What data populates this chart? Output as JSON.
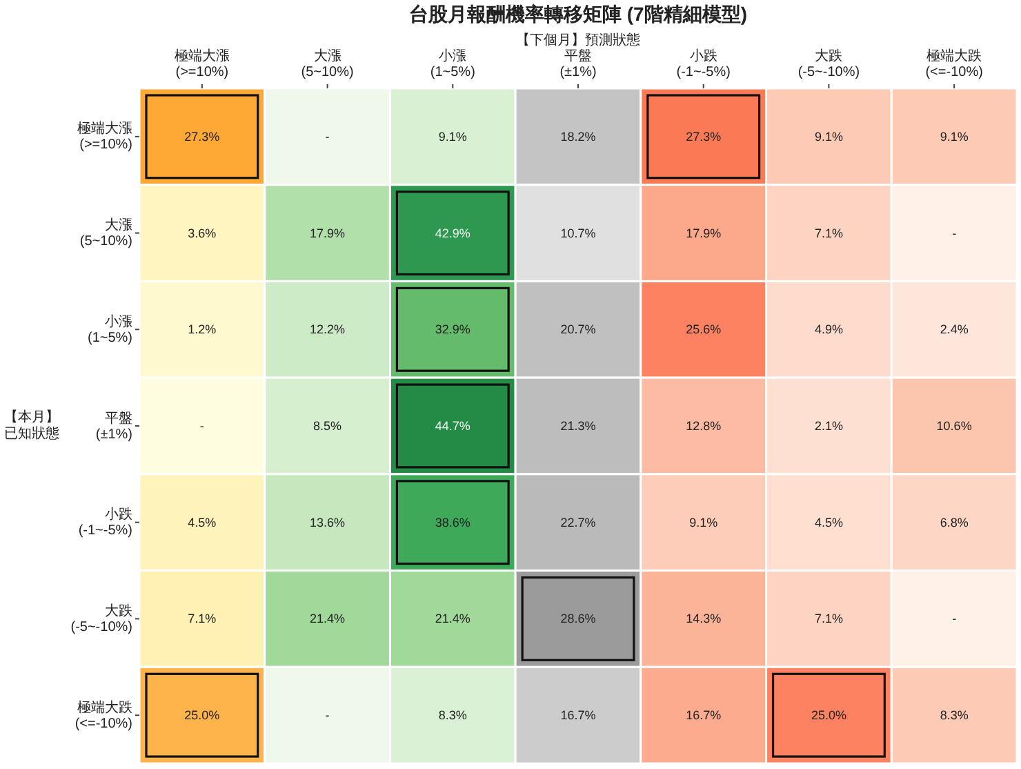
{
  "chart_data": {
    "type": "heatmap",
    "title": "台股月報酬機率轉移矩陣 (7階精細模型)",
    "xlabel": "【下個月】預測狀態",
    "ylabel": "【本月】已知狀態",
    "categories": [
      "極端大漲\n(>=10%)",
      "大漲\n(5~10%)",
      "小漲\n(1~5%)",
      "平盤\n(±1%)",
      "小跌\n(-1~-5%)",
      "大跌\n(-5~-10%)",
      "極端大跌\n(<=-10%)"
    ],
    "y_categories": [
      "極端大漲\n(>=10%)",
      "大漲\n(5~10%)",
      "小漲\n(1~5%)",
      "平盤\n(±1%)",
      "小跌\n(-1~-5%)",
      "大跌\n(-5~-10%)",
      "極端大跌\n(<=-10%)"
    ],
    "cells": [
      [
        27.3,
        null,
        9.1,
        18.2,
        27.3,
        9.1,
        9.1
      ],
      [
        3.6,
        17.9,
        42.9,
        10.7,
        17.9,
        7.1,
        null
      ],
      [
        1.2,
        12.2,
        32.9,
        20.7,
        25.6,
        4.9,
        2.4
      ],
      [
        null,
        8.5,
        44.7,
        21.3,
        12.8,
        2.1,
        10.6
      ],
      [
        4.5,
        13.6,
        38.6,
        22.7,
        9.1,
        4.5,
        6.8
      ],
      [
        7.1,
        21.4,
        21.4,
        28.6,
        14.3,
        7.1,
        null
      ],
      [
        25.0,
        null,
        8.3,
        16.7,
        16.7,
        25.0,
        8.3
      ]
    ],
    "cell_labels": [
      [
        "27.3%",
        "-",
        "9.1%",
        "18.2%",
        "27.3%",
        "9.1%",
        "9.1%"
      ],
      [
        "3.6%",
        "17.9%",
        "42.9%",
        "10.7%",
        "17.9%",
        "7.1%",
        "-"
      ],
      [
        "1.2%",
        "12.2%",
        "32.9%",
        "20.7%",
        "25.6%",
        "4.9%",
        "2.4%"
      ],
      [
        "-",
        "8.5%",
        "44.7%",
        "21.3%",
        "12.8%",
        "2.1%",
        "10.6%"
      ],
      [
        "4.5%",
        "13.6%",
        "38.6%",
        "22.7%",
        "9.1%",
        "4.5%",
        "6.8%"
      ],
      [
        "7.1%",
        "21.4%",
        "21.4%",
        "28.6%",
        "14.3%",
        "7.1%",
        "-"
      ],
      [
        "25.0%",
        "-",
        "8.3%",
        "16.7%",
        "16.7%",
        "25.0%",
        "8.3%"
      ]
    ],
    "colors": [
      [
        "#fea935",
        "#f0f8ec",
        "#d9f0d3",
        "#c4c4c4",
        "#fb7a56",
        "#fdcab5",
        "#fdcab5"
      ],
      [
        "#fff5c1",
        "#b1e0ab",
        "#2e9850",
        "#e0e0e0",
        "#fca88a",
        "#fdd4c2",
        "#fff0e8"
      ],
      [
        "#fff9cf",
        "#ccebc6",
        "#64bb6c",
        "#c0c0c0",
        "#fc8262",
        "#fedbcc",
        "#fee6da"
      ],
      [
        "#fffde0",
        "#d5efcf",
        "#238b45",
        "#bdbdbd",
        "#fcbba2",
        "#fee0d3",
        "#fcc5ad"
      ],
      [
        "#fff3bc",
        "#c5e8bf",
        "#3fa95a",
        "#bababa",
        "#fdcdb9",
        "#fedfd0",
        "#fed6c6"
      ],
      [
        "#fff0b3",
        "#a1d99b",
        "#a1d99b",
        "#9b9b9b",
        "#fcb499",
        "#fdd4c2",
        "#fff0e8"
      ],
      [
        "#feb44a",
        "#f0f8ec",
        "#dbf1d5",
        "#cccccc",
        "#fcab8f",
        "#fc8262",
        "#fdcab5"
      ]
    ]
  }
}
